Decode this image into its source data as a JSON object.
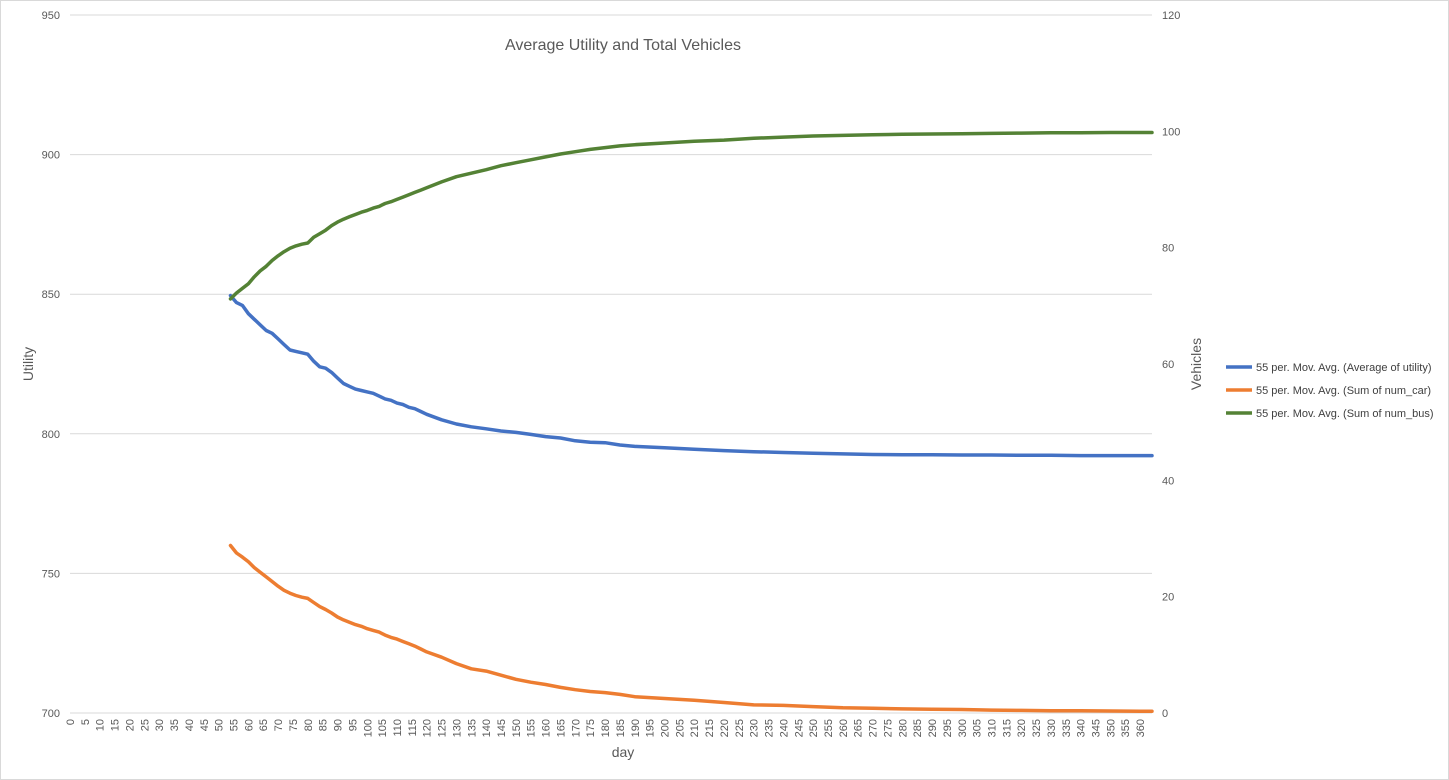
{
  "chart_data": {
    "type": "line",
    "title": "Average Utility and Total Vehicles",
    "xlabel": "day",
    "ylabel_left": "Utility",
    "ylabel_right": "Vehicles",
    "x_tick_labels": [
      "0",
      "5",
      "10",
      "15",
      "20",
      "25",
      "30",
      "35",
      "40",
      "45",
      "50",
      "55",
      "60",
      "65",
      "70",
      "75",
      "80",
      "85",
      "90",
      "95",
      "100",
      "105",
      "110",
      "115",
      "120",
      "125",
      "130",
      "135",
      "140",
      "145",
      "150",
      "155",
      "160",
      "165",
      "170",
      "175",
      "180",
      "185",
      "190",
      "195",
      "200",
      "205",
      "210",
      "215",
      "220",
      "225",
      "230",
      "235",
      "240",
      "245",
      "250",
      "255",
      "260",
      "265",
      "270",
      "275",
      "280",
      "285",
      "290",
      "295",
      "300",
      "305",
      "310",
      "315",
      "320",
      "325",
      "330",
      "335",
      "340",
      "345",
      "350",
      "355",
      "360"
    ],
    "xlim": [
      0,
      364
    ],
    "ylim_left": [
      700,
      950
    ],
    "y_ticks_left": [
      "700",
      "750",
      "800",
      "850",
      "900",
      "950"
    ],
    "ylim_right": [
      0,
      120
    ],
    "y_ticks_right": [
      "0",
      "20",
      "40",
      "60",
      "80",
      "100",
      "120"
    ],
    "grid": true,
    "legend_position": "right",
    "series": [
      {
        "name": "55 per. Mov. Avg. (Average of utility)",
        "axis": "left",
        "color": "#4472C4",
        "x": [
          54,
          56,
          58,
          60,
          62,
          64,
          66,
          68,
          70,
          72,
          74,
          76,
          78,
          80,
          82,
          84,
          86,
          88,
          90,
          92,
          94,
          96,
          98,
          100,
          102,
          104,
          106,
          108,
          110,
          112,
          114,
          116,
          118,
          120,
          125,
          130,
          135,
          140,
          145,
          150,
          155,
          160,
          165,
          170,
          175,
          180,
          185,
          190,
          200,
          210,
          220,
          230,
          240,
          250,
          260,
          270,
          280,
          290,
          300,
          310,
          320,
          330,
          340,
          350,
          360,
          364
        ],
        "y": [
          849.5,
          847,
          846,
          843,
          841,
          839,
          837,
          836,
          834,
          832,
          830,
          829.5,
          829,
          828.5,
          826,
          824,
          823.5,
          822,
          820,
          818,
          817,
          816,
          815.5,
          815,
          814.5,
          813.5,
          812.5,
          812,
          811,
          810.5,
          809.5,
          809,
          808,
          807,
          805,
          803.5,
          802.5,
          801.8,
          801,
          800.5,
          799.8,
          799,
          798.5,
          797.5,
          797,
          796.8,
          796,
          795.5,
          795,
          794.5,
          794,
          793.6,
          793.3,
          793,
          792.8,
          792.6,
          792.5,
          792.5,
          792.4,
          792.4,
          792.3,
          792.3,
          792.2,
          792.2,
          792.2,
          792.2
        ]
      },
      {
        "name": "55 per. Mov. Avg. (Sum of num_car)",
        "axis": "right",
        "color": "#ED7D31",
        "x": [
          54,
          56,
          58,
          60,
          62,
          64,
          66,
          68,
          70,
          72,
          74,
          76,
          78,
          80,
          82,
          84,
          86,
          88,
          90,
          92,
          94,
          96,
          98,
          100,
          102,
          104,
          106,
          108,
          110,
          112,
          114,
          116,
          118,
          120,
          125,
          130,
          135,
          140,
          145,
          150,
          155,
          160,
          165,
          170,
          175,
          180,
          185,
          190,
          200,
          210,
          220,
          230,
          240,
          250,
          260,
          270,
          280,
          290,
          300,
          310,
          320,
          330,
          340,
          350,
          360,
          364
        ],
        "y": [
          28.8,
          27.5,
          26.8,
          26,
          25,
          24.2,
          23.4,
          22.6,
          21.8,
          21.1,
          20.6,
          20.2,
          19.9,
          19.7,
          19,
          18.3,
          17.8,
          17.2,
          16.5,
          16,
          15.6,
          15.2,
          14.9,
          14.5,
          14.2,
          13.9,
          13.4,
          13,
          12.7,
          12.3,
          11.9,
          11.5,
          11,
          10.5,
          9.6,
          8.5,
          7.6,
          7.2,
          6.5,
          5.8,
          5.3,
          4.9,
          4.4,
          4,
          3.7,
          3.5,
          3.2,
          2.8,
          2.5,
          2.2,
          1.8,
          1.4,
          1.3,
          1.1,
          0.9,
          0.8,
          0.7,
          0.65,
          0.6,
          0.5,
          0.45,
          0.4,
          0.4,
          0.35,
          0.3,
          0.3
        ]
      },
      {
        "name": "55 per. Mov. Avg. (Sum of num_bus)",
        "axis": "right",
        "color": "#548235",
        "x": [
          54,
          56,
          58,
          60,
          62,
          64,
          66,
          68,
          70,
          72,
          74,
          76,
          78,
          80,
          82,
          84,
          86,
          88,
          90,
          92,
          94,
          96,
          98,
          100,
          102,
          104,
          106,
          108,
          110,
          112,
          114,
          116,
          118,
          120,
          125,
          130,
          135,
          140,
          145,
          150,
          155,
          160,
          165,
          170,
          175,
          180,
          185,
          190,
          200,
          210,
          220,
          230,
          240,
          250,
          260,
          270,
          280,
          290,
          300,
          310,
          320,
          330,
          340,
          350,
          360,
          364
        ],
        "y": [
          71.2,
          72.2,
          73,
          73.8,
          75,
          76,
          76.8,
          77.8,
          78.6,
          79.3,
          79.9,
          80.3,
          80.6,
          80.8,
          81.8,
          82.4,
          83,
          83.8,
          84.4,
          84.9,
          85.3,
          85.7,
          86.1,
          86.4,
          86.8,
          87.1,
          87.6,
          87.9,
          88.3,
          88.7,
          89.1,
          89.5,
          89.9,
          90.3,
          91.3,
          92.2,
          92.8,
          93.4,
          94.1,
          94.6,
          95.1,
          95.6,
          96.1,
          96.5,
          96.9,
          97.2,
          97.5,
          97.7,
          98,
          98.3,
          98.5,
          98.8,
          99,
          99.2,
          99.3,
          99.4,
          99.5,
          99.55,
          99.6,
          99.65,
          99.7,
          99.75,
          99.75,
          99.8,
          99.8,
          99.8
        ]
      }
    ]
  }
}
